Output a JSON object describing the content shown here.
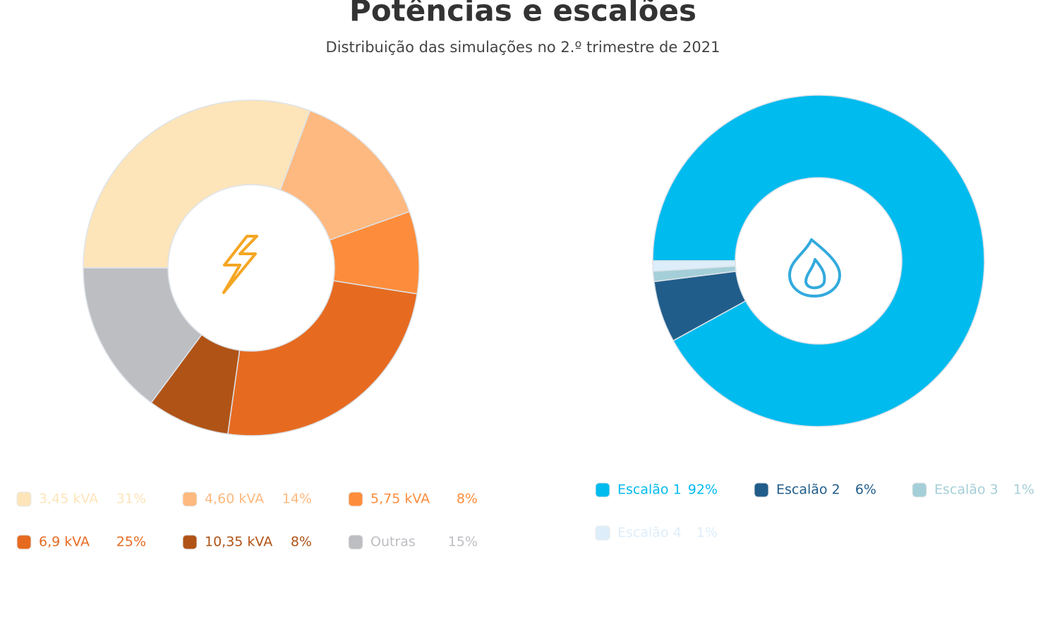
{
  "title": "Potências e escalões",
  "subtitle": "Distribuição das simulações no 2.º trimestre de 2021",
  "chart_data": [
    {
      "type": "donut",
      "categories": [
        "3,45 kVA",
        "4,60 kVA",
        "5,75 kVA",
        "6,9 kVA",
        "10,35 kVA",
        "Outras"
      ],
      "values": [
        31,
        14,
        8,
        25,
        8,
        15
      ],
      "value_labels": [
        "31%",
        "14%",
        "8%",
        "25%",
        "8%",
        "15%"
      ],
      "colors": [
        "#fde5b9",
        "#fdb97f",
        "#fd8d3c",
        "#e66b21",
        "#b05316",
        "#bdbec2"
      ]
    },
    {
      "type": "donut",
      "categories": [
        "Escalão 1",
        "Escalão 2",
        "Escalão 3",
        "Escalão 4"
      ],
      "values": [
        92,
        6,
        1,
        1
      ],
      "value_labels": [
        "92%",
        "6%",
        "1%",
        "1%"
      ],
      "colors": [
        "#00bbee",
        "#215d8a",
        "#a5cfd8",
        "#ddeefa"
      ]
    }
  ]
}
